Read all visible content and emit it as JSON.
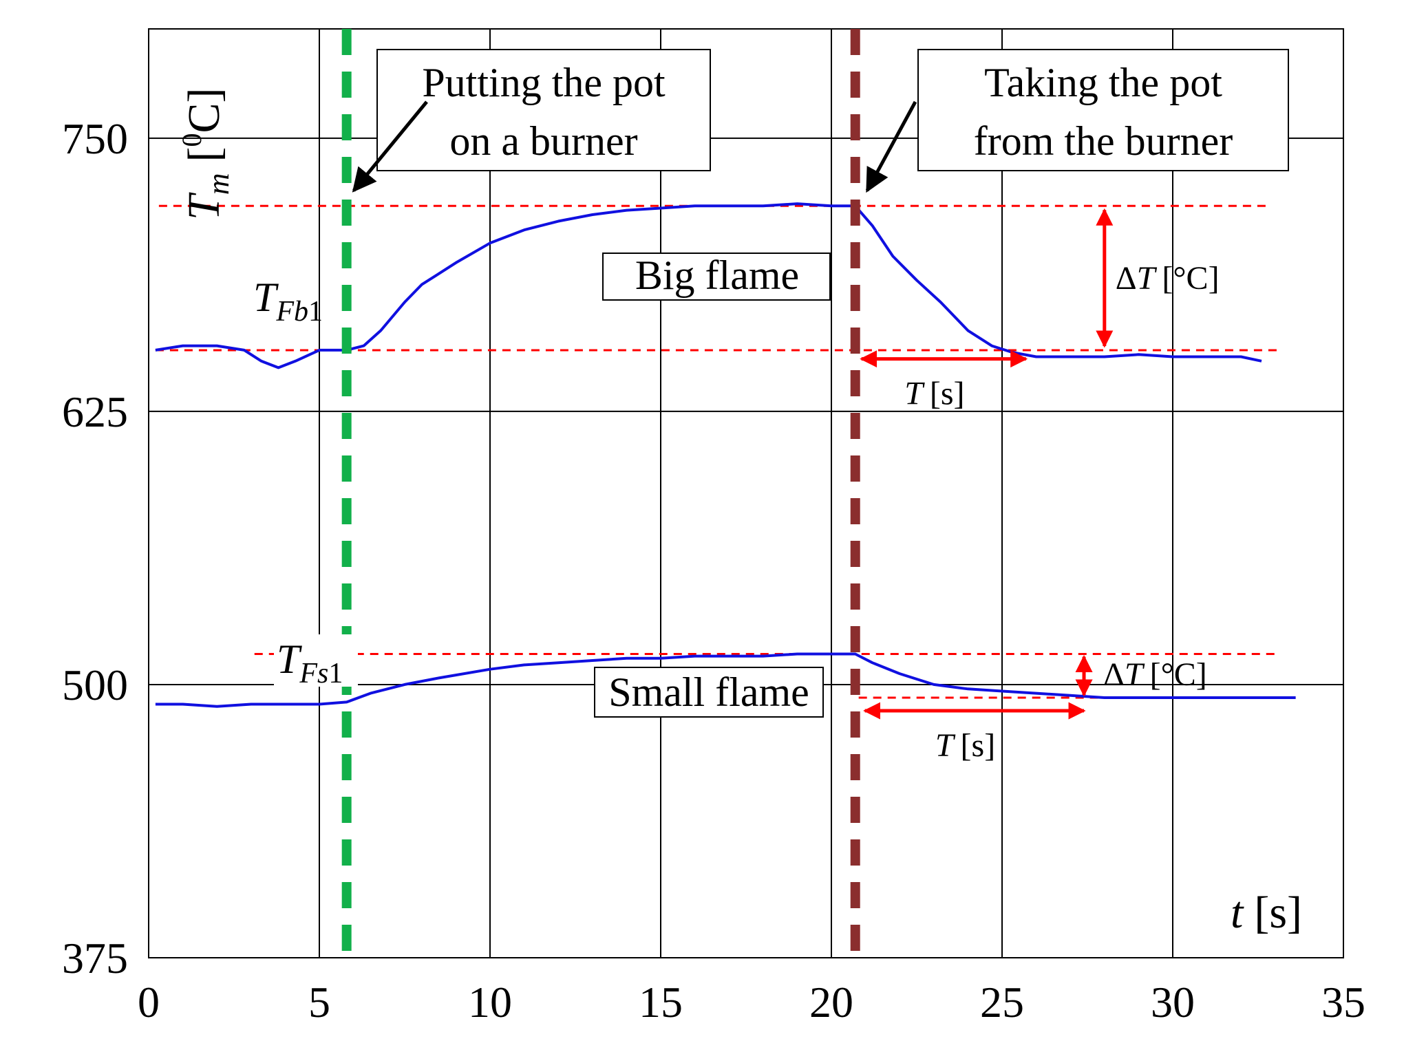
{
  "chart_data": {
    "type": "line",
    "title": "",
    "xlabel": {
      "symbol": "t",
      "unit": "[s]"
    },
    "ylabel": {
      "symbol": "T",
      "sub": "m",
      "unit_open": "[",
      "unit_sup": "0",
      "unit_close": "C]"
    },
    "xlim": [
      0,
      35
    ],
    "ylim": [
      375,
      800
    ],
    "xticks": [
      0,
      5,
      10,
      15,
      20,
      25,
      30,
      35
    ],
    "yticks": [
      375,
      500,
      625,
      750
    ],
    "grid": true,
    "legend": "none",
    "colors": {
      "series": "#1010e0",
      "reference": "#ff0000",
      "event_on": "#12b04a",
      "event_off": "#8b2e2e",
      "grid": "#000000"
    },
    "series": [
      {
        "name": "Big flame",
        "x": [
          0.2,
          1,
          2,
          2.8,
          3.3,
          3.8,
          4.3,
          5,
          5.8,
          6.3,
          6.8,
          7.5,
          8,
          8.5,
          9,
          10,
          11,
          12,
          13,
          14,
          15,
          16,
          17,
          18,
          19,
          20,
          20.7,
          21.2,
          21.8,
          22.5,
          23.2,
          24,
          24.7,
          25.3,
          26,
          27,
          28,
          29,
          30,
          31,
          32,
          32.6
        ],
        "y": [
          653,
          655,
          655,
          653,
          648,
          645,
          648,
          653,
          653,
          655,
          662,
          675,
          683,
          688,
          693,
          702,
          708,
          712,
          715,
          717,
          718,
          719,
          719,
          719,
          720,
          719,
          719,
          710,
          696,
          685,
          675,
          662,
          655,
          652,
          650,
          650,
          650,
          651,
          650,
          650,
          650,
          648
        ]
      },
      {
        "name": "Small flame",
        "x": [
          0.2,
          1,
          2,
          3,
          4,
          5,
          5.8,
          6.5,
          7.5,
          8.5,
          10,
          11,
          12,
          13,
          14,
          15,
          16,
          17,
          18,
          19,
          20,
          20.7,
          21.2,
          22,
          23,
          24,
          25,
          26,
          27,
          28,
          29,
          30,
          31,
          32,
          33,
          33.6
        ],
        "y": [
          491,
          491,
          490,
          491,
          491,
          491,
          492,
          496,
          500,
          503,
          507,
          509,
          510,
          511,
          512,
          512,
          513,
          513,
          513,
          514,
          514,
          514,
          510,
          505,
          500,
          498,
          497,
          496,
          495,
          494,
          494,
          494,
          494,
          494,
          494,
          494
        ]
      }
    ],
    "reference_lines": [
      {
        "label_symbol": "T",
        "label_sub": "Fb",
        "label_num": "1",
        "value": 653,
        "x_from": 0.2,
        "x_to": 33.2
      },
      {
        "value": 719,
        "x_from": 0.3,
        "x_to": 32.8
      },
      {
        "label_symbol": "T",
        "label_sub": "Fs",
        "label_num": "1",
        "value": 514,
        "x_from": 3.1,
        "x_to": 33.0
      },
      {
        "value": 494,
        "x_from": 20.8,
        "x_to": 33.6
      }
    ],
    "events": [
      {
        "x": 5.8,
        "label_line1": "Putting the pot",
        "label_line2": "on a burner"
      },
      {
        "x": 20.7,
        "label_line1": "Taking the pot",
        "label_line2": "from the burner"
      }
    ],
    "annotations": {
      "big_flame": "Big flame",
      "small_flame": "Small flame",
      "delta_symbol": "Δ",
      "delta_var": "T",
      "delta_unit": "[°C]",
      "period_var": "T",
      "period_unit": "[s]",
      "big": {
        "dT_x": 28.0,
        "dT_from": 653,
        "dT_to": 719,
        "T_from": 20.8,
        "T_to": 25.7,
        "T_at": 649
      },
      "small": {
        "dT_x": 27.4,
        "dT_from": 494,
        "dT_to": 514,
        "T_from": 20.9,
        "T_to": 27.4,
        "T_at": 488
      }
    }
  }
}
